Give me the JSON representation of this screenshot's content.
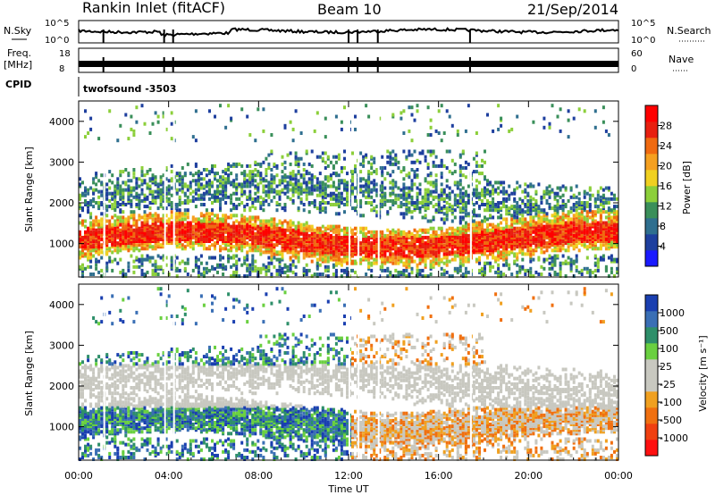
{
  "header": {
    "station": "Rankin Inlet (fitACF)",
    "beam": "Beam 10",
    "date": "21/Sep/2014"
  },
  "strip_panels": {
    "nsky_label": "N.Sky",
    "nsky_ticks": [
      "10^5",
      "10^0"
    ],
    "nsearch_label": "N.Search",
    "nsearch_ticks": [
      "10^5",
      "10^0"
    ],
    "freq_label_1": "Freq.",
    "freq_label_2": "[MHz]",
    "freq_ticks": [
      "18",
      "8"
    ],
    "nave_label": "Nave",
    "nave_ticks": [
      "60",
      "0"
    ],
    "cpid_label": "CPID",
    "cpid_value": "twofsound -3503"
  },
  "chart_data": [
    {
      "type": "heatmap",
      "name": "power-panel",
      "x_ticks": [
        "00:00",
        "04:00",
        "08:00",
        "12:00",
        "16:00",
        "20:00",
        "00:00"
      ],
      "x_range_hours": [
        0,
        24
      ],
      "y_ticks": [
        "1000",
        "2000",
        "3000",
        "4000"
      ],
      "y_values": [
        1000,
        2000,
        3000,
        4000
      ],
      "ylabel": "Slant Range [km]",
      "ylim": [
        180,
        4500
      ],
      "colorbar_label": "Power [dB]",
      "colorbar_ticks": [
        "4",
        "8",
        "12",
        "16",
        "20",
        "24",
        "28"
      ],
      "colorbar_tick_values": [
        4,
        8,
        12,
        16,
        20,
        24,
        28
      ],
      "colorbar_range": [
        0,
        32
      ]
    },
    {
      "type": "heatmap",
      "name": "velocity-panel",
      "x_ticks": [
        "00:00",
        "04:00",
        "08:00",
        "12:00",
        "16:00",
        "20:00",
        "00:00"
      ],
      "x_range_hours": [
        0,
        24
      ],
      "xlabel": "Time UT",
      "y_ticks": [
        "1000",
        "2000",
        "3000",
        "4000"
      ],
      "y_values": [
        1000,
        2000,
        3000,
        4000
      ],
      "ylabel": "Slant Range [km]",
      "ylim": [
        180,
        4500
      ],
      "colorbar_label": "Velocity [m s⁻¹]",
      "colorbar_ticks": [
        "1000",
        "500",
        "100",
        "25",
        "-25",
        "-100",
        "-500",
        "-1000"
      ]
    }
  ],
  "colors": {
    "power_scale": [
      "#1a1aff",
      "#1e3f9e",
      "#2f6f8f",
      "#3a8f5a",
      "#8ccf3a",
      "#f0d020",
      "#f5a020",
      "#f06a10",
      "#e82010",
      "#ff0000"
    ],
    "velocity_scale": [
      "#1a3fb0",
      "#3a6fb5",
      "#2e8f6a",
      "#6ad040",
      "#c8c8c0",
      "#c8c8c0",
      "#f0a020",
      "#f07010",
      "#f04010",
      "#ff1010"
    ]
  }
}
